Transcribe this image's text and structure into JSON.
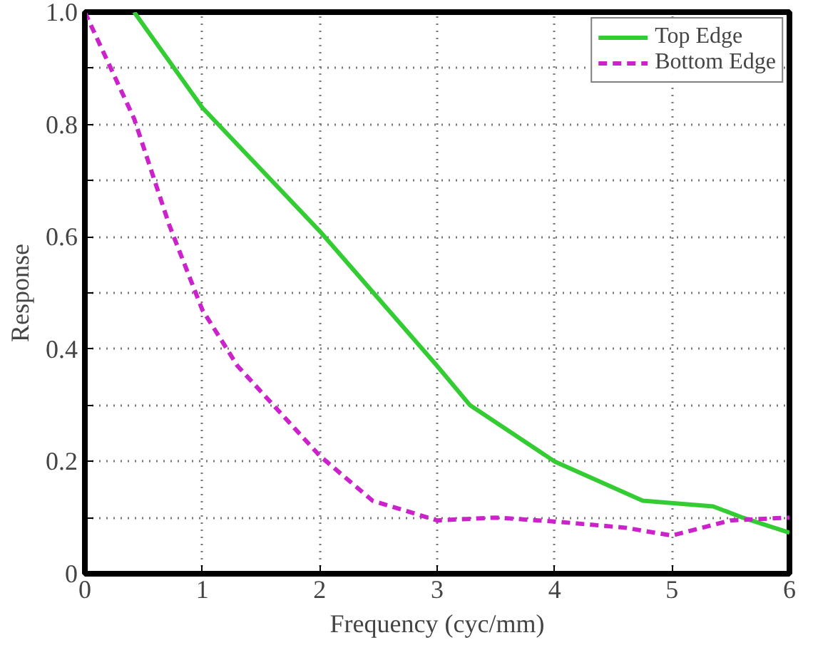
{
  "chart_data": {
    "type": "line",
    "xlabel": "Frequency (cyc/mm)",
    "ylabel": "Response",
    "xlim": [
      0,
      6
    ],
    "ylim": [
      0,
      1
    ],
    "xticks": [
      0,
      1,
      2,
      3,
      4,
      5,
      6
    ],
    "yticks": [
      0,
      {
        "value": 0.1,
        "label": null
      },
      0.2,
      {
        "value": 0.3,
        "label": null
      },
      0.4,
      {
        "value": 0.5,
        "label": null
      },
      0.6,
      {
        "value": 0.7,
        "label": null
      },
      0.8,
      {
        "value": 0.9,
        "label": null
      },
      {
        "value": 1,
        "label": "1.0"
      }
    ],
    "grid": true,
    "legend": "top right",
    "series": [
      {
        "name": "Top Edge",
        "color": "#33cc33",
        "line_style": "solid",
        "x": [
          0.42,
          1,
          2,
          3,
          3.28,
          4,
          4.75,
          5.35,
          5.6,
          6
        ],
        "values": [
          1.0,
          0.83,
          0.61,
          0.37,
          0.3,
          0.2,
          0.13,
          0.12,
          0.1,
          0.073
        ]
      },
      {
        "name": "Bottom Edge",
        "color": "#cc22cc",
        "line_style": "dashed",
        "x": [
          0,
          0.42,
          0.72,
          1,
          1.3,
          2,
          2.45,
          3,
          3.5,
          4,
          4.6,
          5,
          5.5,
          6
        ],
        "values": [
          1.0,
          0.81,
          0.62,
          0.47,
          0.37,
          0.21,
          0.13,
          0.095,
          0.1,
          0.093,
          0.082,
          0.068,
          0.095,
          0.1
        ]
      }
    ]
  }
}
